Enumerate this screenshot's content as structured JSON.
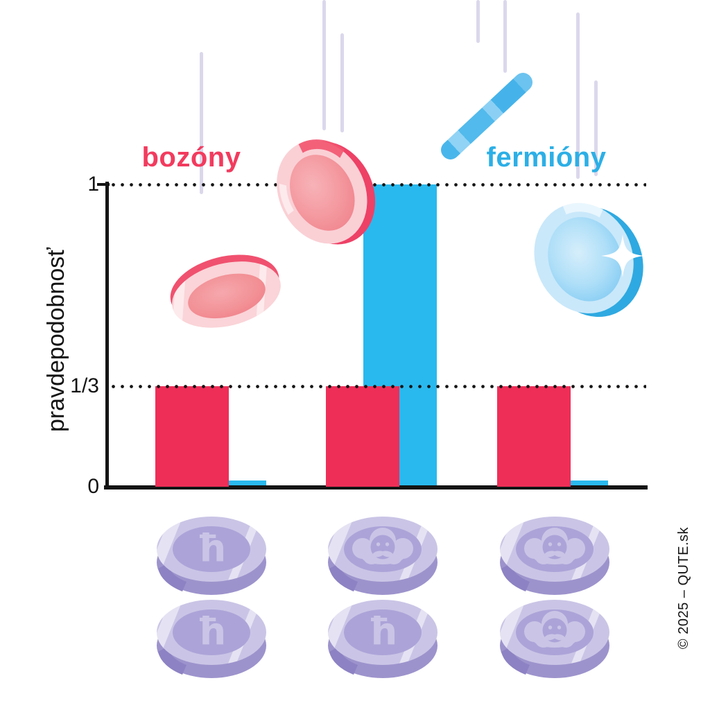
{
  "watermark": "© 2025 – QUTE.sk",
  "colors": {
    "boson_bar": "#EE2E57",
    "fermion_bar": "#29B9EE",
    "boson_text": "#F23B5E",
    "fermion_text": "#2CAFE6",
    "axis": "#141414",
    "streak": "#DBD7EC",
    "coin_face": "#CAC5E6",
    "coin_inner": "#ACA4D8",
    "coin_side": "#9D93CC",
    "coin_side_shade": "#8D82C3"
  },
  "chart_data": {
    "type": "bar",
    "title": "",
    "ylabel": "pravdepodobnosť",
    "xlabel": "",
    "ylim": [
      0,
      1
    ],
    "grid": "dotted horizontal lines at 1 and 1/3",
    "gridlines": [
      1,
      0.3333
    ],
    "yticks": [
      {
        "label": "1",
        "value": 1
      },
      {
        "label": "1/3",
        "value": 0.3333
      },
      {
        "label": "0",
        "value": 0
      }
    ],
    "categories": [
      "ħ + ħ",
      "Planck + ħ",
      "Planck + Planck"
    ],
    "series": [
      {
        "name": "bozóny",
        "color": "#EE2E57",
        "values": [
          0.3333,
          0.3333,
          0.3333
        ]
      },
      {
        "name": "fermióny",
        "color": "#29B9EE",
        "values": [
          0.02,
          1,
          0.02
        ]
      }
    ],
    "legend_position": "colored titles above chart",
    "outcome_pairs": [
      [
        "hbar",
        "hbar"
      ],
      [
        "planck",
        "hbar"
      ],
      [
        "planck",
        "planck"
      ]
    ],
    "hbar_symbol": "ħ"
  }
}
